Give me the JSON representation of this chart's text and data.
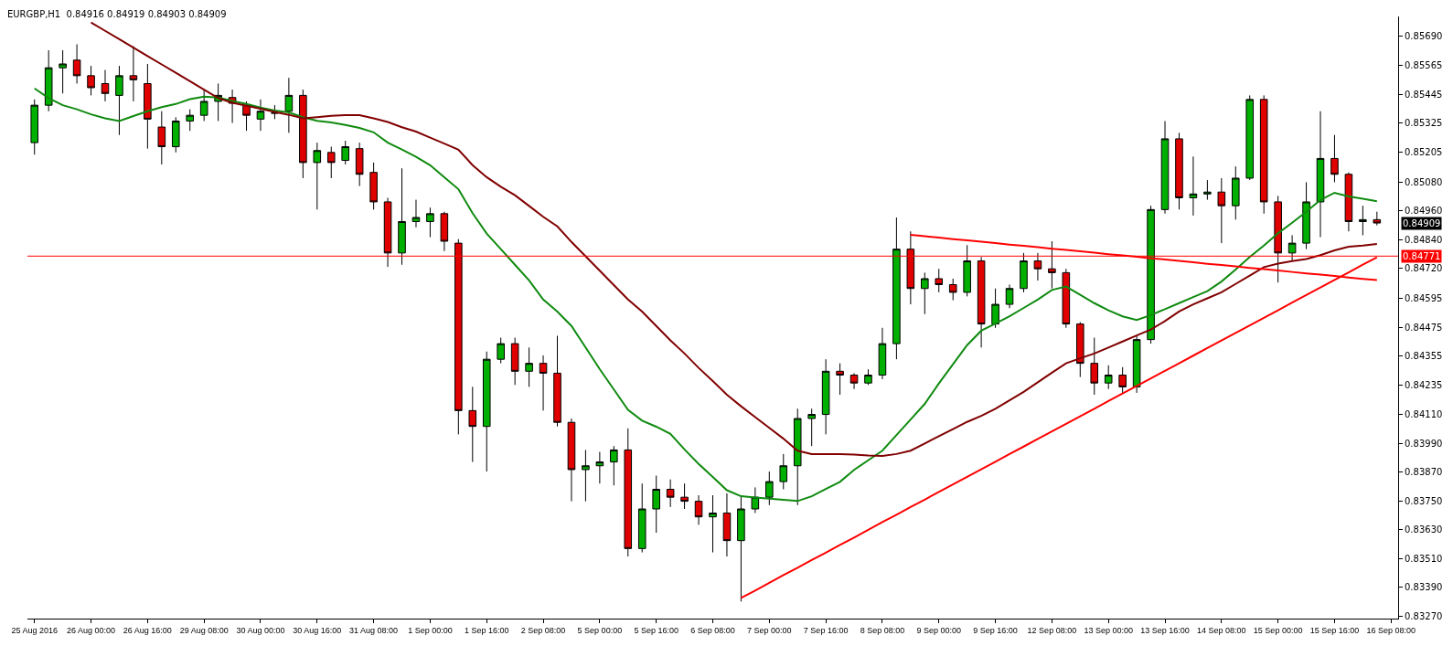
{
  "chart_data": {
    "type": "candlestick",
    "title": "EURGBP,H1  0.84916 0.84919 0.84903 0.84909",
    "categories": [
      "25 Aug 2016",
      null,
      null,
      null,
      "26 Aug 00:00",
      null,
      null,
      null,
      "26 Aug 16:00",
      null,
      null,
      null,
      "29 Aug 08:00",
      null,
      null,
      null,
      "30 Aug 00:00",
      null,
      null,
      null,
      "30 Aug 16:00",
      null,
      null,
      null,
      "31 Aug 08:00",
      null,
      null,
      null,
      "1 Sep 00:00",
      null,
      null,
      null,
      "1 Sep 16:00",
      null,
      null,
      null,
      "2 Sep 08:00",
      null,
      null,
      null,
      "5 Sep 00:00",
      null,
      null,
      null,
      "5 Sep 16:00",
      null,
      null,
      null,
      "6 Sep 08:00",
      null,
      null,
      null,
      "7 Sep 00:00",
      null,
      null,
      null,
      "7 Sep 16:00",
      null,
      null,
      null,
      "8 Sep 08:00",
      null,
      null,
      null,
      "9 Sep 00:00",
      null,
      null,
      null,
      "9 Sep 16:00",
      null,
      null,
      null,
      "12 Sep 08:00",
      null,
      null,
      null,
      "13 Sep 00:00",
      null,
      null,
      null,
      "13 Sep 16:00",
      null,
      null,
      null,
      "14 Sep 08:00",
      null,
      null,
      null,
      "15 Sep 00:00",
      null,
      null,
      null,
      "15 Sep 16:00",
      null,
      null,
      null,
      "16 Sep 08:00"
    ],
    "ohlc": [
      [
        0.85244,
        0.85424,
        0.85194,
        0.854
      ],
      [
        0.854,
        0.85629,
        0.85375,
        0.85556
      ],
      [
        0.85556,
        0.85629,
        0.85449,
        0.85572
      ],
      [
        0.85588,
        0.85654,
        0.8549,
        0.85523
      ],
      [
        0.85523,
        0.85564,
        0.85441,
        0.85473
      ],
      [
        0.8549,
        0.85547,
        0.85416,
        0.85449
      ],
      [
        0.85441,
        0.85564,
        0.85276,
        0.85523
      ],
      [
        0.85523,
        0.85646,
        0.85416,
        0.85506
      ],
      [
        0.8549,
        0.85572,
        0.85219,
        0.85342
      ],
      [
        0.85309,
        0.85375,
        0.85153,
        0.85227
      ],
      [
        0.85227,
        0.8535,
        0.85203,
        0.85334
      ],
      [
        0.85334,
        0.85383,
        0.85293,
        0.85358
      ],
      [
        0.85358,
        0.85465,
        0.85334,
        0.85416
      ],
      [
        0.85416,
        0.8549,
        0.85334,
        0.85441
      ],
      [
        0.85432,
        0.85465,
        0.85326,
        0.85408
      ],
      [
        0.854,
        0.85416,
        0.85293,
        0.85358
      ],
      [
        0.85342,
        0.85424,
        0.85293,
        0.85375
      ],
      [
        0.85367,
        0.854,
        0.85342,
        0.85367
      ],
      [
        0.85375,
        0.85514,
        0.85285,
        0.85441
      ],
      [
        0.85441,
        0.85465,
        0.85096,
        0.85161
      ],
      [
        0.85161,
        0.85244,
        0.84965,
        0.85211
      ],
      [
        0.85203,
        0.85227,
        0.85096,
        0.85161
      ],
      [
        0.8517,
        0.85252,
        0.85153,
        0.85227
      ],
      [
        0.85219,
        0.85244,
        0.85063,
        0.85112
      ],
      [
        0.8512,
        0.85161,
        0.84965,
        0.84997
      ],
      [
        0.84997,
        0.85014,
        0.84726,
        0.84784
      ],
      [
        0.84784,
        0.85137,
        0.84735,
        0.84915
      ],
      [
        0.84915,
        0.85006,
        0.84891,
        0.84932
      ],
      [
        0.84915,
        0.84973,
        0.8485,
        0.84948
      ],
      [
        0.84948,
        0.84956,
        0.84792,
        0.84833
      ],
      [
        0.84825,
        0.84842,
        0.84028,
        0.84127
      ],
      [
        0.84127,
        0.84226,
        0.83913,
        0.84061
      ],
      [
        0.84061,
        0.84373,
        0.83873,
        0.84341
      ],
      [
        0.84341,
        0.84431,
        0.84324,
        0.84406
      ],
      [
        0.84406,
        0.84431,
        0.84234,
        0.84291
      ],
      [
        0.84291,
        0.8439,
        0.84226,
        0.84324
      ],
      [
        0.84324,
        0.84357,
        0.84127,
        0.84283
      ],
      [
        0.84283,
        0.84439,
        0.84061,
        0.84078
      ],
      [
        0.84078,
        0.84094,
        0.83749,
        0.83881
      ],
      [
        0.83881,
        0.83963,
        0.83749,
        0.83897
      ],
      [
        0.83897,
        0.83955,
        0.83823,
        0.83913
      ],
      [
        0.83913,
        0.83979,
        0.83815,
        0.83963
      ],
      [
        0.83963,
        0.84053,
        0.83519,
        0.83552
      ],
      [
        0.83552,
        0.83823,
        0.83536,
        0.83717
      ],
      [
        0.83717,
        0.83856,
        0.83618,
        0.83799
      ],
      [
        0.83799,
        0.8384,
        0.83725,
        0.83766
      ],
      [
        0.83766,
        0.83823,
        0.83717,
        0.83749
      ],
      [
        0.83749,
        0.83774,
        0.83651,
        0.83684
      ],
      [
        0.83684,
        0.83774,
        0.83536,
        0.837
      ],
      [
        0.837,
        0.83782,
        0.83519,
        0.83585
      ],
      [
        0.83585,
        0.83774,
        0.83331,
        0.83717
      ],
      [
        0.83717,
        0.83807,
        0.837,
        0.83766
      ],
      [
        0.83766,
        0.83873,
        0.83733,
        0.83831
      ],
      [
        0.83831,
        0.83946,
        0.83799,
        0.83897
      ],
      [
        0.83897,
        0.84135,
        0.83733,
        0.84094
      ],
      [
        0.84094,
        0.84135,
        0.83979,
        0.84111
      ],
      [
        0.84111,
        0.84341,
        0.84028,
        0.84291
      ],
      [
        0.84291,
        0.84324,
        0.84193,
        0.84275
      ],
      [
        0.84275,
        0.84283,
        0.84217,
        0.84242
      ],
      [
        0.84242,
        0.84299,
        0.84234,
        0.84275
      ],
      [
        0.84275,
        0.84472,
        0.84258,
        0.84406
      ],
      [
        0.84406,
        0.84932,
        0.84341,
        0.848
      ],
      [
        0.848,
        0.84874,
        0.8457,
        0.84636
      ],
      [
        0.84636,
        0.84702,
        0.84529,
        0.84677
      ],
      [
        0.84677,
        0.84718,
        0.8462,
        0.84652
      ],
      [
        0.84652,
        0.84677,
        0.84587,
        0.8462
      ],
      [
        0.8462,
        0.84817,
        0.84603,
        0.84751
      ],
      [
        0.84751,
        0.84767,
        0.8439,
        0.84488
      ],
      [
        0.84488,
        0.84636,
        0.84472,
        0.8457
      ],
      [
        0.8457,
        0.84652,
        0.84554,
        0.84636
      ],
      [
        0.84636,
        0.84784,
        0.8462,
        0.84751
      ],
      [
        0.84751,
        0.84784,
        0.84669,
        0.84718
      ],
      [
        0.84718,
        0.84833,
        0.84636,
        0.84702
      ],
      [
        0.84702,
        0.84718,
        0.84472,
        0.84488
      ],
      [
        0.84488,
        0.84496,
        0.84267,
        0.84324
      ],
      [
        0.84324,
        0.84431,
        0.84193,
        0.84242
      ],
      [
        0.84242,
        0.84316,
        0.84217,
        0.84275
      ],
      [
        0.84275,
        0.84308,
        0.84201,
        0.84226
      ],
      [
        0.84226,
        0.84439,
        0.84201,
        0.84423
      ],
      [
        0.84423,
        0.84981,
        0.84406,
        0.84965
      ],
      [
        0.84965,
        0.85334,
        0.84948,
        0.8526
      ],
      [
        0.8526,
        0.85285,
        0.84965,
        0.85014
      ],
      [
        0.85014,
        0.85186,
        0.8494,
        0.8503
      ],
      [
        0.8503,
        0.85088,
        0.85006,
        0.85038
      ],
      [
        0.85038,
        0.85096,
        0.84825,
        0.84981
      ],
      [
        0.84981,
        0.85145,
        0.84923,
        0.85096
      ],
      [
        0.85096,
        0.85441,
        0.85088,
        0.85424
      ],
      [
        0.85424,
        0.85441,
        0.84948,
        0.84997
      ],
      [
        0.84997,
        0.85022,
        0.84661,
        0.84784
      ],
      [
        0.84784,
        0.84858,
        0.84751,
        0.84825
      ],
      [
        0.84825,
        0.85079,
        0.848,
        0.84997
      ],
      [
        0.84997,
        0.85375,
        0.8485,
        0.85178
      ],
      [
        0.85178,
        0.85276,
        0.85079,
        0.85112
      ],
      [
        0.85112,
        0.8512,
        0.84874,
        0.84915
      ],
      [
        0.84915,
        0.84981,
        0.84858,
        0.84923
      ],
      [
        0.84923,
        0.84956,
        0.84899,
        0.84909
      ],
      null
    ],
    "series": [
      {
        "type": "line",
        "color": "#0f8a0f",
        "values": [
          0.8547,
          0.8543,
          0.854,
          0.85383,
          0.85362,
          0.85345,
          0.85334,
          0.85355,
          0.85375,
          0.85392,
          0.85405,
          0.85425,
          0.85436,
          0.85432,
          0.85418,
          0.85405,
          0.8539,
          0.85378,
          0.8537,
          0.8535,
          0.85335,
          0.85328,
          0.85318,
          0.85305,
          0.85287,
          0.85244,
          0.85215,
          0.85185,
          0.8515,
          0.851,
          0.8505,
          0.8495,
          0.84865,
          0.848,
          0.84735,
          0.8467,
          0.8459,
          0.8454,
          0.8448,
          0.8439,
          0.843,
          0.84215,
          0.8413,
          0.84085,
          0.8406,
          0.8403,
          0.83965,
          0.83905,
          0.8385,
          0.83795,
          0.8377,
          0.83765,
          0.8376,
          0.83755,
          0.8375,
          0.8377,
          0.838,
          0.8383,
          0.8388,
          0.8392,
          0.8396,
          0.84025,
          0.8409,
          0.84155,
          0.8424,
          0.8432,
          0.844,
          0.8446,
          0.8449,
          0.8452,
          0.84555,
          0.8459,
          0.8463,
          0.84644,
          0.8461,
          0.84575,
          0.84545,
          0.8452,
          0.84505,
          0.84525,
          0.8455,
          0.84575,
          0.846,
          0.84625,
          0.84665,
          0.84715,
          0.84767,
          0.84815,
          0.84866,
          0.8491,
          0.84956,
          0.85005,
          0.85035,
          0.8502,
          0.8501,
          0.85,
          null
        ]
      },
      {
        "type": "line",
        "color": "#800000",
        "values": [
          null,
          null,
          null,
          null,
          0.85745,
          0.8571,
          0.85675,
          0.8564,
          0.85605,
          0.8557,
          0.85535,
          0.855,
          0.85465,
          0.8543,
          0.8541,
          0.85398,
          0.85385,
          0.85372,
          0.8536,
          0.85345,
          0.8535,
          0.85356,
          0.85359,
          0.85359,
          0.85345,
          0.8533,
          0.85308,
          0.8529,
          0.85265,
          0.8524,
          0.85215,
          0.8515,
          0.851,
          0.8506,
          0.85025,
          0.8498,
          0.84935,
          0.84895,
          0.8483,
          0.8477,
          0.8471,
          0.8465,
          0.8459,
          0.8454,
          0.8448,
          0.8442,
          0.84365,
          0.84305,
          0.8425,
          0.84193,
          0.84145,
          0.841,
          0.84055,
          0.8401,
          0.8396,
          0.83946,
          0.83946,
          0.83946,
          0.83944,
          0.8394,
          0.83938,
          0.83946,
          0.8396,
          0.8399,
          0.8402,
          0.8405,
          0.8408,
          0.84105,
          0.84135,
          0.8417,
          0.84205,
          0.84245,
          0.84285,
          0.84324,
          0.84345,
          0.84365,
          0.8439,
          0.84415,
          0.8444,
          0.84465,
          0.845,
          0.8454,
          0.8457,
          0.84595,
          0.8462,
          0.84655,
          0.8469,
          0.84725,
          0.8474,
          0.8475,
          0.84759,
          0.84775,
          0.84795,
          0.8481,
          0.84815,
          0.84822,
          null
        ]
      },
      {
        "type": "line",
        "color": "#ff0000",
        "values": [
          null,
          null,
          null,
          null,
          null,
          null,
          null,
          null,
          null,
          null,
          null,
          null,
          null,
          null,
          null,
          null,
          null,
          null,
          null,
          null,
          null,
          null,
          null,
          null,
          null,
          null,
          null,
          null,
          null,
          null,
          null,
          null,
          null,
          null,
          null,
          null,
          null,
          null,
          null,
          null,
          null,
          null,
          null,
          null,
          null,
          null,
          null,
          null,
          null,
          null,
          0.83346,
          0.83377,
          0.83409,
          0.83441,
          0.83472,
          0.83504,
          0.83535,
          0.83567,
          0.83598,
          0.8363,
          0.83662,
          0.83693,
          0.83725,
          0.83756,
          0.83788,
          0.83819,
          0.83851,
          0.83882,
          0.83914,
          0.83946,
          0.83977,
          0.84009,
          0.8404,
          0.84072,
          0.84103,
          0.84135,
          0.84167,
          0.84198,
          0.8423,
          0.84261,
          0.84293,
          0.84324,
          0.84356,
          0.84388,
          0.84419,
          0.84451,
          0.84482,
          0.84514,
          0.84545,
          0.84577,
          0.84609,
          0.8464,
          0.84672,
          0.84703,
          0.84735,
          0.84766,
          null
        ]
      },
      {
        "type": "line",
        "color": "#ff0000",
        "values": [
          null,
          null,
          null,
          null,
          null,
          null,
          null,
          null,
          null,
          null,
          null,
          null,
          null,
          null,
          null,
          null,
          null,
          null,
          null,
          null,
          null,
          null,
          null,
          null,
          null,
          null,
          null,
          null,
          null,
          null,
          null,
          null,
          null,
          null,
          null,
          null,
          null,
          null,
          null,
          null,
          null,
          null,
          null,
          null,
          null,
          null,
          null,
          null,
          null,
          null,
          null,
          null,
          null,
          null,
          null,
          null,
          null,
          null,
          null,
          null,
          null,
          null,
          0.8486,
          0.84854,
          0.84848,
          0.84842,
          0.84837,
          0.84831,
          0.84825,
          0.84819,
          0.84814,
          0.84808,
          0.84802,
          0.84797,
          0.84791,
          0.84785,
          0.84779,
          0.84774,
          0.84768,
          0.84762,
          0.84757,
          0.84751,
          0.84745,
          0.84739,
          0.84734,
          0.84728,
          0.84722,
          0.84717,
          0.84711,
          0.84705,
          0.84699,
          0.84694,
          0.84688,
          0.84682,
          0.84676,
          0.84671,
          null
        ]
      }
    ],
    "ref_lines": [
      {
        "axis": "y",
        "value": 0.84771,
        "label": "0.84771",
        "color": "#ff0000"
      }
    ],
    "annotations": [
      {
        "text": "0.84909",
        "y": 0.84909
      }
    ],
    "ylim": [
      0.8326,
      0.8577
    ],
    "yticks": [
      {
        "value": 0.8569,
        "label": "0.85690"
      },
      {
        "value": 0.85565,
        "label": "0.85565"
      },
      {
        "value": 0.85445,
        "label": "0.85445"
      },
      {
        "value": 0.85325,
        "label": "0.85325"
      },
      {
        "value": 0.85205,
        "label": "0.85205"
      },
      {
        "value": 0.8508,
        "label": "0.85080"
      },
      {
        "value": 0.8496,
        "label": "0.84960"
      },
      {
        "value": 0.8484,
        "label": "0.84840"
      },
      {
        "value": 0.8472,
        "label": "0.84720"
      },
      {
        "value": 0.84595,
        "label": "0.84595"
      },
      {
        "value": 0.84475,
        "label": "0.84475"
      },
      {
        "value": 0.84355,
        "label": "0.84355"
      },
      {
        "value": 0.84235,
        "label": "0.84235"
      },
      {
        "value": 0.8411,
        "label": "0.84110"
      },
      {
        "value": 0.8399,
        "label": "0.83990"
      },
      {
        "value": 0.8387,
        "label": "0.83870"
      },
      {
        "value": 0.8375,
        "label": "0.83750"
      },
      {
        "value": 0.8363,
        "label": "0.83630"
      },
      {
        "value": 0.8351,
        "label": "0.83510"
      },
      {
        "value": 0.8339,
        "label": "0.83390"
      },
      {
        "value": 0.8327,
        "label": "0.83270"
      }
    ]
  }
}
